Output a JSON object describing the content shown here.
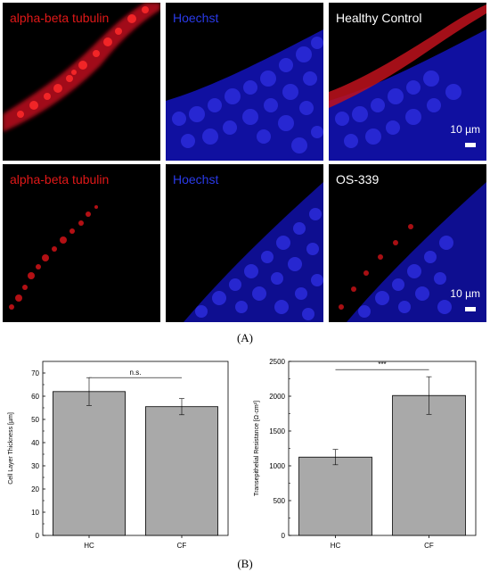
{
  "panel_a": {
    "caption": "(A)",
    "rows": [
      {
        "label_red": "alpha-beta tubulin",
        "label_blue": "Hoechst",
        "label_merge": "Healthy Control",
        "scale_text": "10 µm"
      },
      {
        "label_red": "alpha-beta tubulin",
        "label_blue": "Hoechst",
        "label_merge": "OS-339",
        "scale_text": "10 µm"
      }
    ],
    "colors": {
      "tubulin": "#e0141a",
      "hoechst": "#1a1ad8",
      "label_red": "#e01818",
      "label_blue": "#2a3ae8",
      "label_white": "#ffffff"
    }
  },
  "panel_b": {
    "caption": "(B)",
    "bar_color": "#a9a9a9"
  },
  "chart_data": [
    {
      "type": "bar",
      "categories": [
        "HC",
        "CF"
      ],
      "values": [
        62,
        55.5
      ],
      "errors": [
        6,
        3.5
      ],
      "ylabel": "Cell Layer Thickness [µm]",
      "ylim": [
        0,
        75
      ],
      "yticks": [
        "0",
        "10",
        "20",
        "30",
        "40",
        "50",
        "60",
        "70"
      ],
      "significance": "n.s."
    },
    {
      "type": "bar",
      "categories": [
        "HC",
        "CF"
      ],
      "values": [
        1125,
        2010
      ],
      "errors": [
        110,
        270
      ],
      "ylabel": "Transepithelial Resistance [Ω·cm²]",
      "ylim": [
        0,
        2500
      ],
      "yticks": [
        "0",
        "500",
        "1000",
        "1500",
        "2000",
        "2500"
      ],
      "significance": "***"
    }
  ]
}
